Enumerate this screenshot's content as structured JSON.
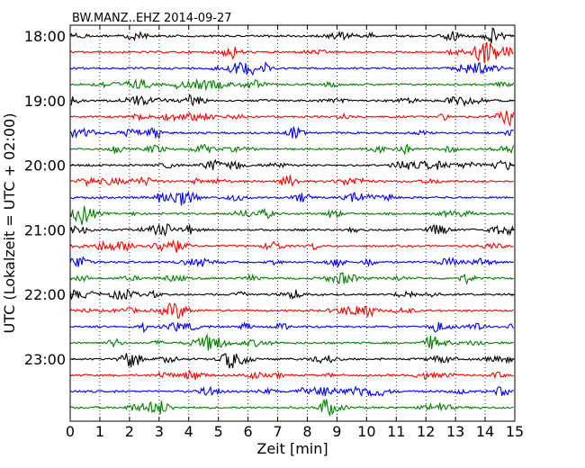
{
  "chart_data": {
    "type": "line",
    "title": "BW.MANZ..EHZ 2014-09-27",
    "xlabel": "Zeit  [min]",
    "ylabel": "UTC (Lokalzeit = UTC + 02:00)",
    "xlim": [
      0,
      15
    ],
    "x_ticks": [
      "0",
      "1",
      "2",
      "3",
      "4",
      "5",
      "6",
      "7",
      "8",
      "9",
      "10",
      "11",
      "12",
      "13",
      "14",
      "15"
    ],
    "y_tick_labels": [
      "18:00",
      "19:00",
      "20:00",
      "21:00",
      "22:00",
      "23:00"
    ],
    "grid": "vertical dotted lines at each minute",
    "trace_start_hour": 18,
    "trace_interval_minutes": 15,
    "trace_count": 24,
    "trace_colors": [
      "#000000",
      "#ff0000",
      "#0000ff",
      "#008000"
    ]
  }
}
